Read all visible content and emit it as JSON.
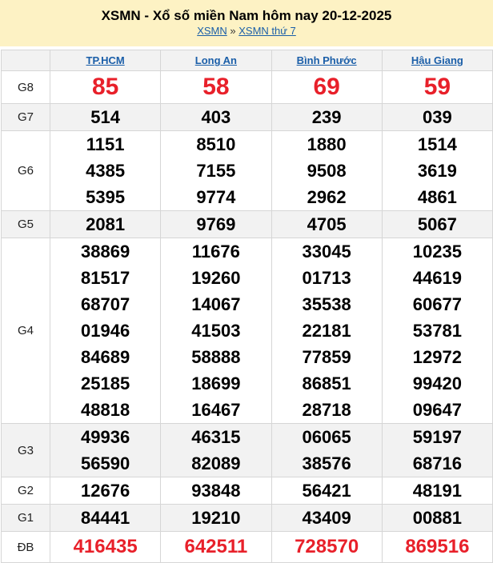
{
  "header": {
    "title": "XSMN - Xổ số miền Nam hôm nay 20-12-2025",
    "breadcrumb": [
      "XSMN",
      "XSMN thứ 7"
    ],
    "separator": "»"
  },
  "provinces": [
    "TP.HCM",
    "Long An",
    "Bình Phước",
    "Hậu Giang"
  ],
  "prizes": [
    {
      "label": "G8",
      "values": [
        [
          "85"
        ],
        [
          "58"
        ],
        [
          "69"
        ],
        [
          "59"
        ]
      ]
    },
    {
      "label": "G7",
      "values": [
        [
          "514"
        ],
        [
          "403"
        ],
        [
          "239"
        ],
        [
          "039"
        ]
      ]
    },
    {
      "label": "G6",
      "values": [
        [
          "1151",
          "4385",
          "5395"
        ],
        [
          "8510",
          "7155",
          "9774"
        ],
        [
          "1880",
          "9508",
          "2962"
        ],
        [
          "1514",
          "3619",
          "4861"
        ]
      ]
    },
    {
      "label": "G5",
      "values": [
        [
          "2081"
        ],
        [
          "9769"
        ],
        [
          "4705"
        ],
        [
          "5067"
        ]
      ]
    },
    {
      "label": "G4",
      "values": [
        [
          "38869",
          "81517",
          "68707",
          "01946",
          "84689",
          "25185",
          "48818"
        ],
        [
          "11676",
          "19260",
          "14067",
          "41503",
          "58888",
          "18699",
          "16467"
        ],
        [
          "33045",
          "01713",
          "35538",
          "22181",
          "77859",
          "86851",
          "28718"
        ],
        [
          "10235",
          "44619",
          "60677",
          "53781",
          "12972",
          "99420",
          "09647"
        ]
      ]
    },
    {
      "label": "G3",
      "values": [
        [
          "49936",
          "56590"
        ],
        [
          "46315",
          "82089"
        ],
        [
          "06065",
          "38576"
        ],
        [
          "59197",
          "68716"
        ]
      ]
    },
    {
      "label": "G2",
      "values": [
        [
          "12676"
        ],
        [
          "93848"
        ],
        [
          "56421"
        ],
        [
          "48191"
        ]
      ]
    },
    {
      "label": "G1",
      "values": [
        [
          "84441"
        ],
        [
          "19210"
        ],
        [
          "43409"
        ],
        [
          "00881"
        ]
      ]
    },
    {
      "label": "ĐB",
      "values": [
        [
          "416435"
        ],
        [
          "642511"
        ],
        [
          "728570"
        ],
        [
          "869516"
        ]
      ]
    }
  ],
  "colors": {
    "highlight": "#e8202a",
    "banner": "#fdf2c4",
    "link": "#1a5ea8"
  }
}
